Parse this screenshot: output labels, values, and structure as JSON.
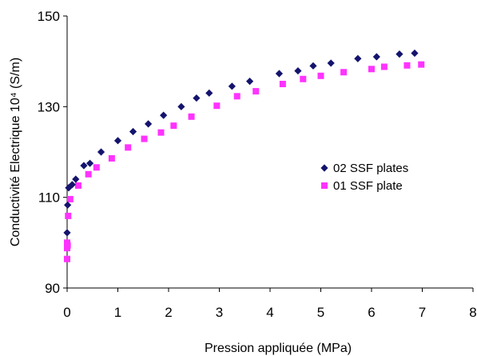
{
  "chart_data": {
    "type": "scatter",
    "xlabel": "Pression appliquée (MPa)",
    "ylabel": "Conductivité Electrique 10⁴ (S/m)",
    "xlim": [
      0,
      8
    ],
    "ylim": [
      90,
      150
    ],
    "xticks": [
      "0",
      "1",
      "2",
      "3",
      "4",
      "5",
      "6",
      "7",
      "8"
    ],
    "yticks": [
      "90",
      "110",
      "130",
      "150"
    ],
    "grid": false,
    "legend_position": "right",
    "series": [
      {
        "name": "02 SSF plates",
        "marker": "diamond",
        "color": "#14146e",
        "points": [
          [
            0,
            102.2
          ],
          [
            0.01,
            108.3
          ],
          [
            0.03,
            112.1
          ],
          [
            0.1,
            112.8
          ],
          [
            0.17,
            114.0
          ],
          [
            0.33,
            117.0
          ],
          [
            0.45,
            117.5
          ],
          [
            0.67,
            120.0
          ],
          [
            1.0,
            122.5
          ],
          [
            1.3,
            124.5
          ],
          [
            1.6,
            126.2
          ],
          [
            1.9,
            128.1
          ],
          [
            2.25,
            130.0
          ],
          [
            2.55,
            131.9
          ],
          [
            2.8,
            133.0
          ],
          [
            3.25,
            134.5
          ],
          [
            3.6,
            135.6
          ],
          [
            4.18,
            137.3
          ],
          [
            4.55,
            137.9
          ],
          [
            4.85,
            139.0
          ],
          [
            5.2,
            139.6
          ],
          [
            5.73,
            140.6
          ],
          [
            6.1,
            141.0
          ],
          [
            6.55,
            141.6
          ],
          [
            6.85,
            141.8
          ]
        ]
      },
      {
        "name": "01 SSF plate",
        "marker": "square",
        "color": "#ff33ff",
        "points": [
          [
            0,
            96.4
          ],
          [
            0.0,
            98.8
          ],
          [
            0.01,
            99.4
          ],
          [
            0.0,
            100.0
          ],
          [
            0.02,
            105.9
          ],
          [
            0.06,
            109.6
          ],
          [
            0.22,
            112.6
          ],
          [
            0.42,
            115.1
          ],
          [
            0.58,
            116.6
          ],
          [
            0.88,
            118.6
          ],
          [
            1.2,
            121.0
          ],
          [
            1.52,
            122.9
          ],
          [
            1.85,
            124.3
          ],
          [
            2.1,
            125.8
          ],
          [
            2.45,
            127.8
          ],
          [
            2.95,
            130.2
          ],
          [
            3.35,
            132.3
          ],
          [
            3.72,
            133.4
          ],
          [
            4.25,
            135.0
          ],
          [
            4.65,
            136.1
          ],
          [
            5.0,
            136.8
          ],
          [
            5.45,
            137.6
          ],
          [
            6.0,
            138.3
          ],
          [
            6.25,
            138.8
          ],
          [
            6.7,
            139.1
          ],
          [
            6.98,
            139.3
          ]
        ]
      }
    ]
  }
}
